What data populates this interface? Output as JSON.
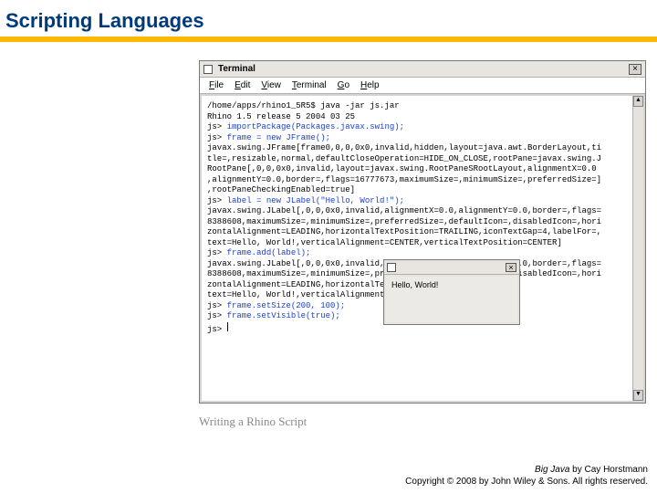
{
  "slide": {
    "title": "Scripting Languages",
    "gold_bar_color": "#ffb800",
    "title_color": "#003a7a"
  },
  "terminal": {
    "window_title": "Terminal",
    "menus": {
      "file": "File",
      "edit": "Edit",
      "view": "View",
      "terminal": "Terminal",
      "go": "Go",
      "help": "Help"
    },
    "lines": {
      "l0": "/home/apps/rhino1_5R5$ java -jar js.jar",
      "l1": "Rhino 1.5 release 5 2004 03 25",
      "p2": "js> ",
      "c2": "importPackage(Packages.javax.swing);",
      "p3": "js> ",
      "c3": "frame = new JFrame();",
      "l4": "javax.swing.JFrame[frame0,0,0,0x0,invalid,hidden,layout=java.awt.BorderLayout,ti",
      "l5": "tle=,resizable,normal,defaultCloseOperation=HIDE_ON_CLOSE,rootPane=javax.swing.J",
      "l6": "RootPane[,0,0,0x0,invalid,layout=javax.swing.RootPaneSRootLayout,alignmentX=0.0",
      "l7": ",alignmentY=0.0,border=,flags=16777673,maximumSize=,minimumSize=,preferredSize=]",
      "l8": ",rootPaneCheckingEnabled=true]",
      "p9": "js> ",
      "c9": "label = new JLabel(\"Hello, World!\");",
      "l10": "javax.swing.JLabel[,0,0,0x0,invalid,alignmentX=0.0,alignmentY=0.0,border=,flags=",
      "l11": "8388608,maximumSize=,minimumSize=,preferredSize=,defaultIcon=,disabledIcon=,hori",
      "l12": "zontalAlignment=LEADING,horizontalTextPosition=TRAILING,iconTextGap=4,labelFor=,",
      "l13": "text=Hello, World!,verticalAlignment=CENTER,verticalTextPosition=CENTER]",
      "p14": "js> ",
      "c14": "frame.add(label);",
      "l15": "javax.swing.JLabel[,0,0,0x0,invalid,alignmentX=0.0,alignmentY=0.0,border=,flags=",
      "l16": "8388608,maximumSize=,minimumSize=,preferredSize=,defaultIcon=,disabledIcon=,hori",
      "l17": "zontalAlignment=LEADING,horizontalTextPositi",
      "l18": "text=Hello, World!,verticalAlignment=CENTER,",
      "p19": "js> ",
      "c19": "frame.setSize(200, 100);",
      "p20": "js> ",
      "c20": "frame.setVisible(true);",
      "p21": "js> "
    }
  },
  "popup": {
    "text": "Hello, World!"
  },
  "figure_caption": "Writing a Rhino Script",
  "footer": {
    "line1_italic": "Big Java",
    "line1_rest": " by Cay Horstmann",
    "line2": "Copyright © 2008 by John Wiley & Sons. All rights reserved."
  }
}
